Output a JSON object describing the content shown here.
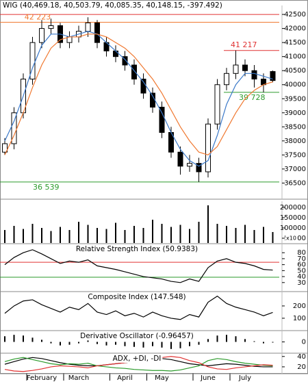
{
  "chart_data": [
    {
      "type": "candlestick",
      "title": "WIG (40,469.18, 40,503.79, 40,085.35, 40,148.15, -397.492)",
      "categories": [
        null,
        null,
        null,
        null,
        "February",
        null,
        null,
        null,
        "March",
        null,
        null,
        null,
        null,
        "April",
        null,
        null,
        null,
        "May",
        null,
        null,
        null,
        null,
        "June",
        null,
        null,
        null,
        "July",
        null,
        null,
        null
      ],
      "open": [
        37600,
        37900,
        39000,
        40200,
        41500,
        42000,
        42100,
        41500,
        41700,
        41900,
        42200,
        41500,
        41200,
        41000,
        40700,
        40200,
        39700,
        39200,
        38300,
        37600,
        37100,
        37200,
        36900,
        38600,
        40000,
        40400,
        40700,
        40500,
        40200,
        40469.18
      ],
      "high": [
        38100,
        39200,
        40400,
        41700,
        42300,
        42350,
        42200,
        41900,
        42100,
        42400,
        42300,
        41700,
        41400,
        41200,
        40900,
        40400,
        39900,
        39400,
        38500,
        37800,
        37500,
        37400,
        38800,
        40200,
        40600,
        41217,
        40900,
        40700,
        40400,
        40503.79
      ],
      "low": [
        37500,
        37700,
        38800,
        40000,
        41300,
        41800,
        41300,
        41300,
        41500,
        41700,
        41300,
        41000,
        40800,
        40500,
        40000,
        39500,
        39000,
        38100,
        37400,
        36800,
        36900,
        36539,
        36700,
        38400,
        39800,
        40200,
        40300,
        39900,
        39728,
        40085.35
      ],
      "close": [
        37900,
        39000,
        40200,
        41500,
        42000,
        42100,
        41500,
        41700,
        41900,
        42200,
        41500,
        41200,
        41000,
        40700,
        40200,
        39700,
        39200,
        38300,
        37600,
        37100,
        37200,
        36900,
        38600,
        40000,
        40400,
        40700,
        40500,
        40200,
        40000,
        40148.15
      ],
      "lines": [
        {
          "color": "#3a78c8",
          "values": [
            38000,
            38700,
            39600,
            40600,
            41400,
            41800,
            41800,
            41700,
            41800,
            41900,
            41800,
            41500,
            41200,
            40900,
            40500,
            40100,
            39600,
            39000,
            38300,
            37700,
            37300,
            37100,
            37300,
            38200,
            39300,
            40000,
            40400,
            40400,
            40300,
            40200
          ]
        },
        {
          "color": "#f07830",
          "values": [
            37500,
            38200,
            39000,
            39900,
            40700,
            41300,
            41600,
            41700,
            41700,
            41800,
            41800,
            41700,
            41500,
            41300,
            41000,
            40600,
            40200,
            39700,
            39100,
            38500,
            38000,
            37600,
            37500,
            37800,
            38400,
            39000,
            39500,
            39800,
            40000,
            40100
          ]
        }
      ],
      "hlines": [
        {
          "value": 42500,
          "color": "#e03030"
        },
        {
          "value": 42223,
          "color": "#f07830",
          "label": "42 223"
        },
        {
          "value": 41217,
          "color": "#e03030",
          "label": "41 217",
          "start": 24
        },
        {
          "value": 39728,
          "color": "#2a9a2a",
          "label": "39 728",
          "start": 24
        },
        {
          "value": 36539,
          "color": "#2a9a2a",
          "label": "36 539"
        }
      ],
      "ylim": [
        35950,
        42770
      ],
      "yticks": [
        36500,
        37000,
        37500,
        38000,
        38500,
        39000,
        39500,
        40000,
        40500,
        41000,
        41500,
        42000,
        42500
      ]
    },
    {
      "type": "bar",
      "unit_label": "x10",
      "values": [
        90000,
        110000,
        95000,
        120000,
        100000,
        85000,
        105000,
        90000,
        130000,
        115000,
        100000,
        95000,
        125000,
        90000,
        110000,
        100000,
        140000,
        120000,
        105000,
        115000,
        95000,
        130000,
        210000,
        120000,
        110000,
        100000,
        115000,
        90000,
        105000,
        80000
      ],
      "color": "#000000",
      "ylim": [
        26700,
        223300
      ],
      "yticks": [
        50000,
        100000,
        150000,
        200000
      ]
    },
    {
      "type": "line",
      "title": "Relative Strength Index (50.9383)",
      "lines": [
        {
          "color": "#000000",
          "values": [
            60,
            72,
            80,
            85,
            78,
            70,
            62,
            66,
            64,
            68,
            58,
            55,
            52,
            48,
            44,
            40,
            38,
            36,
            32,
            30,
            36,
            32,
            55,
            66,
            70,
            64,
            62,
            58,
            52,
            50.9383
          ]
        }
      ],
      "hlines": [
        {
          "value": 64,
          "color": "#e03030"
        },
        {
          "value": 39,
          "color": "#2a9a2a"
        }
      ],
      "ylim": [
        16,
        94
      ],
      "yticks": [
        30,
        40,
        50,
        60,
        70,
        80
      ]
    },
    {
      "type": "line",
      "title": "Composite Index (147.548)",
      "lines": [
        {
          "color": "#000000",
          "values": [
            140,
            200,
            240,
            250,
            210,
            180,
            150,
            190,
            170,
            220,
            150,
            130,
            160,
            120,
            140,
            110,
            150,
            120,
            100,
            90,
            130,
            110,
            230,
            280,
            220,
            190,
            170,
            150,
            120,
            147.548
          ]
        }
      ],
      "ylim": [
        5,
        311
      ],
      "yticks": [
        100,
        200
      ]
    },
    {
      "type": "bar",
      "title": "Derivative Oscillator (-0.96457)",
      "values": [
        8,
        10,
        9,
        6,
        3,
        -2,
        -5,
        -4,
        -2,
        2,
        -3,
        -5,
        -4,
        -6,
        -7,
        -8,
        -6,
        -8,
        -10,
        -9,
        -6,
        -4,
        4,
        9,
        10,
        8,
        4,
        1,
        -2,
        -0.96457
      ],
      "color": "#000000",
      "ylim": [
        -15,
        15
      ],
      "yticks": [
        0
      ]
    },
    {
      "type": "line",
      "title": "ADX, +DI, -DI",
      "lines": [
        {
          "color": "#000000",
          "values": [
            25,
            30,
            35,
            38,
            36,
            32,
            28,
            25,
            23,
            22,
            22,
            24,
            26,
            28,
            30,
            32,
            34,
            36,
            34,
            30,
            26,
            24,
            22,
            24,
            26,
            25,
            23,
            21,
            20,
            20
          ]
        },
        {
          "color": "#2a9a2a",
          "values": [
            30,
            35,
            38,
            34,
            30,
            26,
            24,
            26,
            25,
            27,
            22,
            20,
            18,
            17,
            15,
            14,
            13,
            13,
            12,
            14,
            18,
            22,
            32,
            36,
            34,
            30,
            27,
            25,
            23,
            22
          ]
        },
        {
          "color": "#e03030",
          "values": [
            15,
            12,
            11,
            13,
            16,
            20,
            22,
            21,
            20,
            18,
            22,
            24,
            26,
            28,
            30,
            33,
            36,
            38,
            40,
            38,
            32,
            28,
            20,
            16,
            15,
            18,
            20,
            22,
            24,
            23
          ]
        }
      ],
      "ylim": [
        8,
        45
      ],
      "yticks": [
        20,
        40
      ]
    }
  ]
}
